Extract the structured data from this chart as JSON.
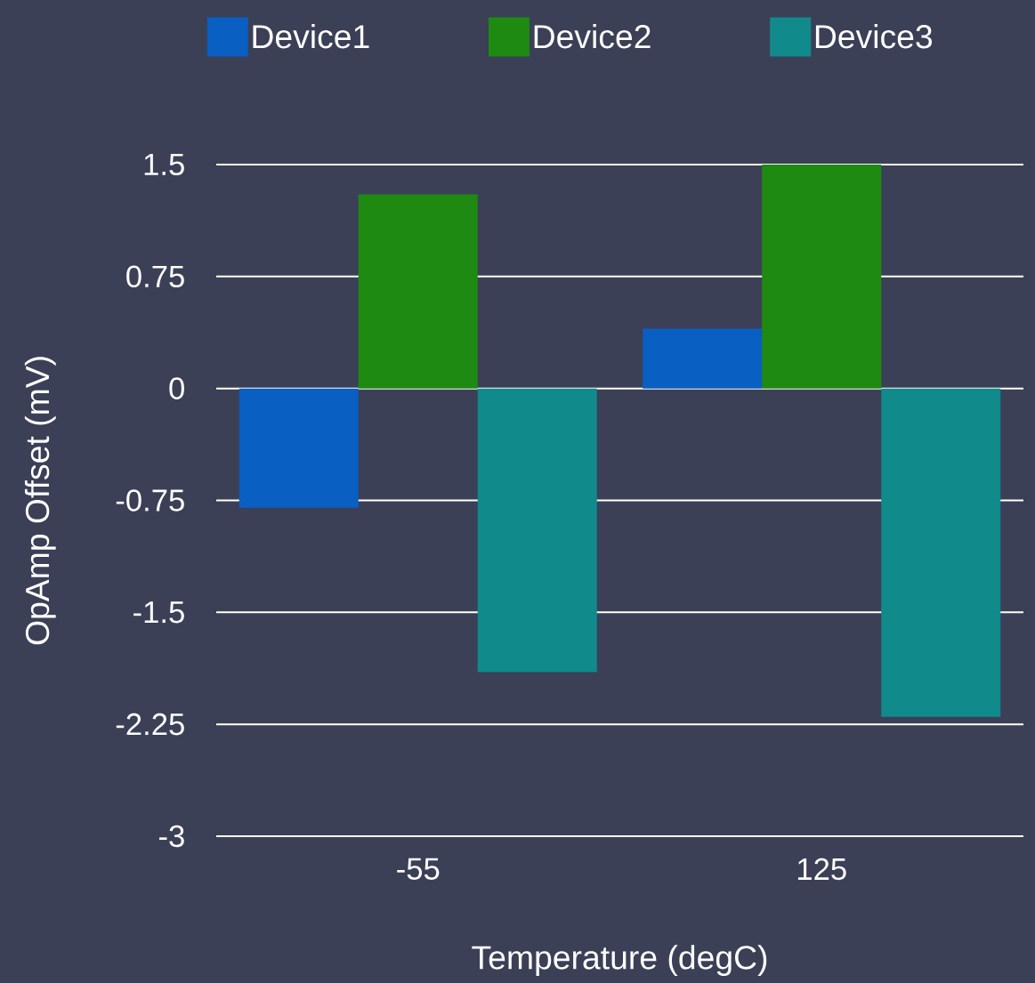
{
  "chart_data": {
    "type": "bar",
    "xlabel": "Temperature (degC)",
    "ylabel": "OpAmp Offset (mV)",
    "categories": [
      "-55",
      "125"
    ],
    "series": [
      {
        "name": "Device1",
        "color": "#0a5fc2",
        "values": [
          -0.8,
          0.4
        ]
      },
      {
        "name": "Device2",
        "color": "#1f8a12",
        "values": [
          1.3,
          1.5
        ]
      },
      {
        "name": "Device3",
        "color": "#118a8c",
        "values": [
          -1.9,
          -2.2
        ]
      }
    ],
    "ylim": [
      -3,
      1.5
    ],
    "yticks": [
      {
        "value": -3,
        "label": "-3"
      },
      {
        "value": -2.25,
        "label": "-2.25"
      },
      {
        "value": -1.5,
        "label": "-1.5"
      },
      {
        "value": -0.75,
        "label": "-0.75"
      },
      {
        "value": 0,
        "label": "0"
      },
      {
        "value": 0.75,
        "label": "0.75"
      },
      {
        "value": 1.5,
        "label": "1.5"
      }
    ],
    "grid": "y",
    "legend": "top"
  }
}
